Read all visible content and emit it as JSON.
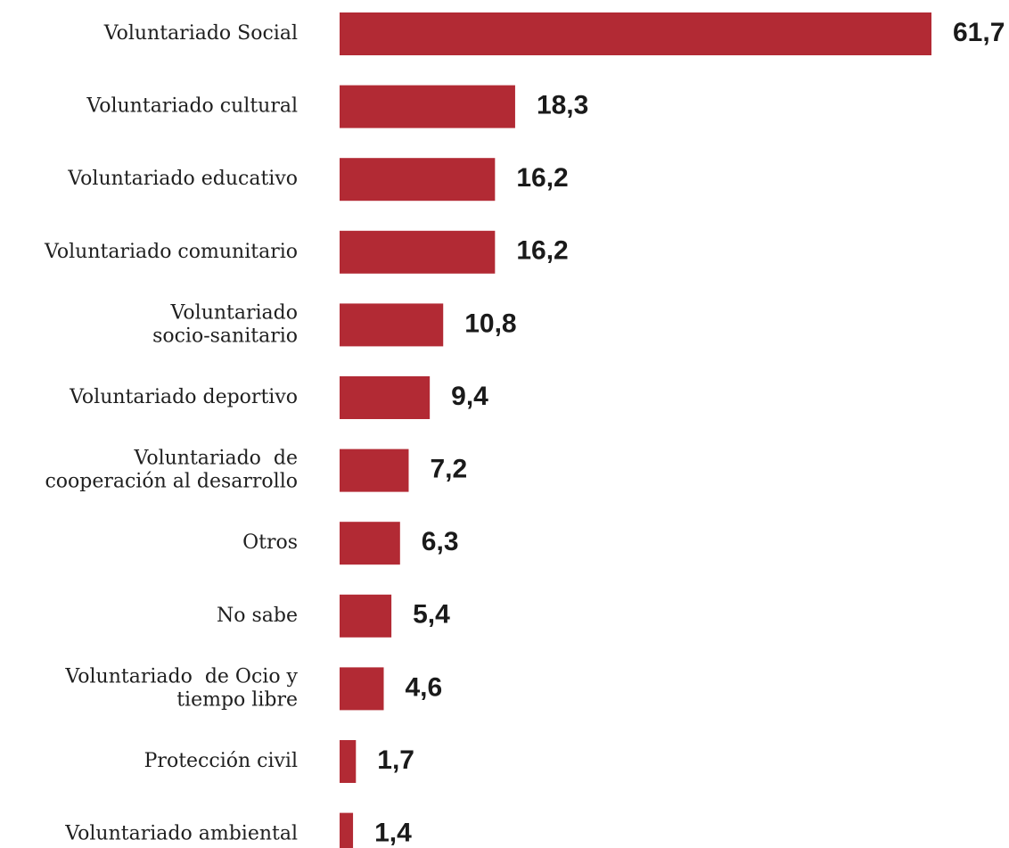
{
  "chart_data": {
    "type": "bar",
    "orientation": "horizontal",
    "categories": [
      "Voluntariado Social",
      "Voluntariado cultural",
      "Voluntariado educativo",
      "Voluntariado comunitario",
      "Voluntariado\nsocio-sanitario",
      "Voluntariado deportivo",
      "Voluntariado  de\ncooperación al desarrollo",
      "Otros",
      "No sabe",
      "Voluntariado  de Ocio y\ntiempo libre",
      "Protección civil",
      "Voluntariado ambiental"
    ],
    "values": [
      61.7,
      18.3,
      16.2,
      16.2,
      10.8,
      9.4,
      7.2,
      6.3,
      5.4,
      4.6,
      1.7,
      1.4
    ],
    "value_labels": [
      "61,7",
      "18,3",
      "16,2",
      "16,2",
      "10,8",
      "9,4",
      "7,2",
      "6,3",
      "5,4",
      "4,6",
      "1,7",
      "1,4"
    ],
    "title": "",
    "xlabel": "",
    "ylabel": "",
    "xlim": [
      0,
      61.7
    ],
    "grid": false,
    "legend": "none",
    "bar_color": "#B22A34"
  }
}
